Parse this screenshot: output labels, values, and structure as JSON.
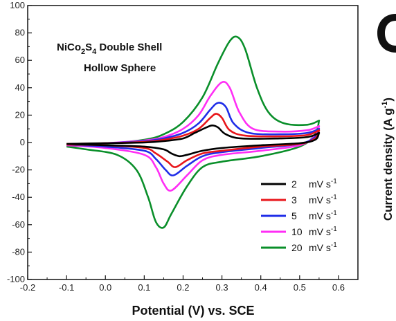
{
  "chart_data": {
    "type": "line",
    "title": "",
    "xlabel": "Potential (V) vs. SCE",
    "ylabel": "Current density (A g-1)",
    "xlim": [
      -0.2,
      0.65
    ],
    "ylim": [
      -100,
      100
    ],
    "xticks": [
      "-0.2",
      "-0.1",
      "0.0",
      "0.1",
      "0.2",
      "0.3",
      "0.4",
      "0.5",
      "0.6"
    ],
    "yticks": [
      "100",
      "80",
      "60",
      "40",
      "20",
      "0",
      "-20",
      "-40",
      "-60",
      "-80",
      "-100"
    ],
    "grid": false,
    "legend_position": "bottom-right",
    "annotation": [
      "NiCo2S4 Double Shell",
      "Hollow Sphere"
    ],
    "annotation_parts": {
      "line1_a": "NiCo",
      "line1_sub1": "2",
      "line1_b": "S",
      "line1_sub2": "4",
      "line1_c": " Double Shell",
      "line2": "Hollow Sphere"
    },
    "ylabel_parts": {
      "main": "Current density (A g",
      "sup": "-1",
      "end": ")"
    },
    "legend_unit": {
      "main": "mV s",
      "sup": "-1"
    },
    "colors": {
      "2": "#000000",
      "3": "#e8161b",
      "5": "#1f2de8",
      "10": "#ff2ef5",
      "20": "#0a8f2a"
    },
    "series": [
      {
        "name": "2 mV s-1",
        "legend_value": "2",
        "upper": [
          [
            -0.1,
            -1
          ],
          [
            0.0,
            -0.5
          ],
          [
            0.1,
            0
          ],
          [
            0.15,
            1
          ],
          [
            0.2,
            3
          ],
          [
            0.23,
            7
          ],
          [
            0.26,
            11
          ],
          [
            0.275,
            12.5
          ],
          [
            0.29,
            11
          ],
          [
            0.31,
            6
          ],
          [
            0.35,
            3
          ],
          [
            0.45,
            3
          ],
          [
            0.52,
            4
          ],
          [
            0.55,
            7
          ]
        ],
        "lower": [
          [
            0.55,
            7
          ],
          [
            0.54,
            2
          ],
          [
            0.5,
            -0.5
          ],
          [
            0.4,
            -2
          ],
          [
            0.3,
            -4
          ],
          [
            0.25,
            -6
          ],
          [
            0.21,
            -9
          ],
          [
            0.19,
            -10
          ],
          [
            0.17,
            -8
          ],
          [
            0.15,
            -5
          ],
          [
            0.1,
            -3
          ],
          [
            0.0,
            -2
          ],
          [
            -0.1,
            -1
          ]
        ]
      },
      {
        "name": "3 mV s-1",
        "legend_value": "3",
        "upper": [
          [
            -0.1,
            -1
          ],
          [
            0.0,
            -0.5
          ],
          [
            0.1,
            0.5
          ],
          [
            0.15,
            2
          ],
          [
            0.2,
            5
          ],
          [
            0.24,
            10
          ],
          [
            0.27,
            18
          ],
          [
            0.285,
            21
          ],
          [
            0.3,
            18
          ],
          [
            0.32,
            9
          ],
          [
            0.36,
            5
          ],
          [
            0.45,
            4.5
          ],
          [
            0.52,
            5.5
          ],
          [
            0.55,
            9
          ]
        ],
        "lower": [
          [
            0.55,
            9
          ],
          [
            0.54,
            3
          ],
          [
            0.5,
            -1
          ],
          [
            0.4,
            -3
          ],
          [
            0.3,
            -6
          ],
          [
            0.25,
            -8
          ],
          [
            0.21,
            -13
          ],
          [
            0.18,
            -18
          ],
          [
            0.16,
            -14
          ],
          [
            0.13,
            -8
          ],
          [
            0.1,
            -4
          ],
          [
            0.0,
            -2
          ],
          [
            -0.1,
            -1.5
          ]
        ]
      },
      {
        "name": "5 mV s-1",
        "legend_value": "5",
        "upper": [
          [
            -0.1,
            -1.5
          ],
          [
            0.0,
            -0.5
          ],
          [
            0.1,
            1
          ],
          [
            0.15,
            3
          ],
          [
            0.2,
            7
          ],
          [
            0.24,
            14
          ],
          [
            0.27,
            24
          ],
          [
            0.29,
            29
          ],
          [
            0.31,
            26
          ],
          [
            0.33,
            14
          ],
          [
            0.37,
            7
          ],
          [
            0.45,
            6
          ],
          [
            0.52,
            7
          ],
          [
            0.55,
            10
          ]
        ],
        "lower": [
          [
            0.55,
            10
          ],
          [
            0.54,
            4
          ],
          [
            0.5,
            -1
          ],
          [
            0.4,
            -4
          ],
          [
            0.3,
            -7
          ],
          [
            0.25,
            -10
          ],
          [
            0.21,
            -17
          ],
          [
            0.175,
            -24
          ],
          [
            0.155,
            -20
          ],
          [
            0.13,
            -12
          ],
          [
            0.1,
            -6
          ],
          [
            0.0,
            -3
          ],
          [
            -0.1,
            -1.5
          ]
        ]
      },
      {
        "name": "10 mV s-1",
        "legend_value": "10",
        "upper": [
          [
            -0.1,
            -2
          ],
          [
            0.0,
            -0.5
          ],
          [
            0.1,
            1.5
          ],
          [
            0.15,
            4
          ],
          [
            0.2,
            10
          ],
          [
            0.24,
            20
          ],
          [
            0.27,
            34
          ],
          [
            0.3,
            44
          ],
          [
            0.32,
            40
          ],
          [
            0.345,
            22
          ],
          [
            0.38,
            10
          ],
          [
            0.45,
            8
          ],
          [
            0.52,
            9
          ],
          [
            0.55,
            12
          ]
        ],
        "lower": [
          [
            0.55,
            12
          ],
          [
            0.54,
            5
          ],
          [
            0.5,
            -2
          ],
          [
            0.4,
            -6
          ],
          [
            0.3,
            -9
          ],
          [
            0.25,
            -13
          ],
          [
            0.21,
            -24
          ],
          [
            0.17,
            -35
          ],
          [
            0.15,
            -30
          ],
          [
            0.13,
            -18
          ],
          [
            0.1,
            -9
          ],
          [
            0.0,
            -4
          ],
          [
            -0.1,
            -2
          ]
        ]
      },
      {
        "name": "20 mV s-1",
        "legend_value": "20",
        "upper": [
          [
            -0.1,
            -3
          ],
          [
            0.0,
            -1
          ],
          [
            0.1,
            2
          ],
          [
            0.15,
            6
          ],
          [
            0.2,
            15
          ],
          [
            0.25,
            33
          ],
          [
            0.29,
            58
          ],
          [
            0.32,
            74
          ],
          [
            0.34,
            77
          ],
          [
            0.36,
            68
          ],
          [
            0.39,
            40
          ],
          [
            0.42,
            22
          ],
          [
            0.46,
            14
          ],
          [
            0.52,
            13
          ],
          [
            0.55,
            16
          ]
        ],
        "lower": [
          [
            0.55,
            16
          ],
          [
            0.54,
            6
          ],
          [
            0.5,
            -3
          ],
          [
            0.4,
            -10
          ],
          [
            0.3,
            -14
          ],
          [
            0.25,
            -18
          ],
          [
            0.21,
            -32
          ],
          [
            0.17,
            -52
          ],
          [
            0.15,
            -62
          ],
          [
            0.13,
            -58
          ],
          [
            0.11,
            -40
          ],
          [
            0.08,
            -20
          ],
          [
            0.03,
            -9
          ],
          [
            -0.05,
            -5
          ],
          [
            -0.1,
            -3
          ]
        ]
      }
    ]
  }
}
